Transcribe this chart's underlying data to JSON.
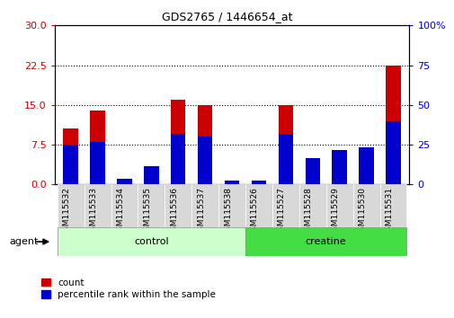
{
  "title": "GDS2765 / 1446654_at",
  "samples": [
    "GSM115532",
    "GSM115533",
    "GSM115534",
    "GSM115535",
    "GSM115536",
    "GSM115537",
    "GSM115538",
    "GSM115526",
    "GSM115527",
    "GSM115528",
    "GSM115529",
    "GSM115530",
    "GSM115531"
  ],
  "count_values": [
    10.5,
    14.0,
    1.0,
    3.5,
    16.0,
    15.0,
    0.8,
    0.6,
    15.0,
    4.0,
    6.0,
    7.0,
    22.5
  ],
  "percentile_values": [
    7.5,
    8.0,
    1.0,
    3.5,
    9.5,
    9.0,
    0.7,
    0.7,
    9.5,
    5.0,
    6.5,
    7.0,
    12.0
  ],
  "n_control": 7,
  "n_creatine": 6,
  "ylim_left": [
    0,
    30
  ],
  "ylim_right": [
    0,
    100
  ],
  "yticks_left": [
    0,
    7.5,
    15,
    22.5,
    30
  ],
  "yticks_right": [
    0,
    25,
    50,
    75,
    100
  ],
  "red_color": "#cc0000",
  "blue_color": "#0000cc",
  "control_bg": "#ccffcc",
  "creatine_bg": "#44dd44",
  "tick_label_color_left": "#cc0000",
  "tick_label_color_right": "#0000cc",
  "count_label": "count",
  "percentile_label": "percentile rank within the sample",
  "fig_width": 5.06,
  "fig_height": 3.54
}
